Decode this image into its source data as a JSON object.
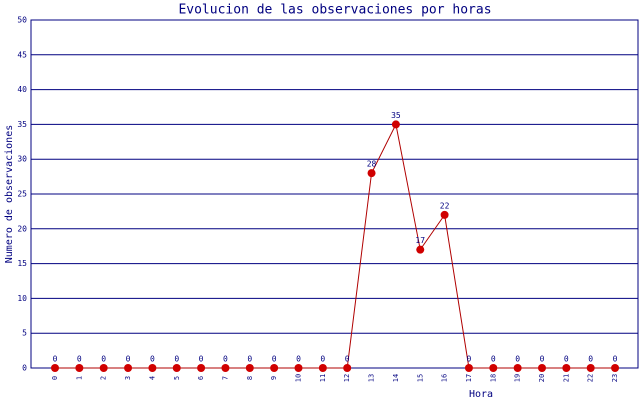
{
  "chart_data": {
    "type": "line",
    "title": "Evolucion de las observaciones por horas",
    "x_label": "Hora",
    "y_label": "Numero de observaciones",
    "categories": [
      "0",
      "1",
      "2",
      "3",
      "4",
      "5",
      "6",
      "7",
      "8",
      "9",
      "10",
      "11",
      "12",
      "13",
      "14",
      "15",
      "16",
      "17",
      "18",
      "19",
      "20",
      "21",
      "22",
      "23"
    ],
    "series": [
      {
        "name": "observaciones",
        "color": "#b00000",
        "marker_color": "#d00000",
        "values": [
          0,
          0,
          0,
          0,
          0,
          0,
          0,
          0,
          0,
          0,
          0,
          0,
          0,
          28,
          35,
          17,
          22,
          0,
          0,
          0,
          0,
          0,
          0,
          0
        ]
      }
    ],
    "ylim": [
      0,
      50
    ],
    "yticks": [
      0,
      5,
      10,
      15,
      20,
      25,
      30,
      35,
      40,
      45,
      50
    ],
    "grid": true,
    "grid_color": "#000080"
  }
}
